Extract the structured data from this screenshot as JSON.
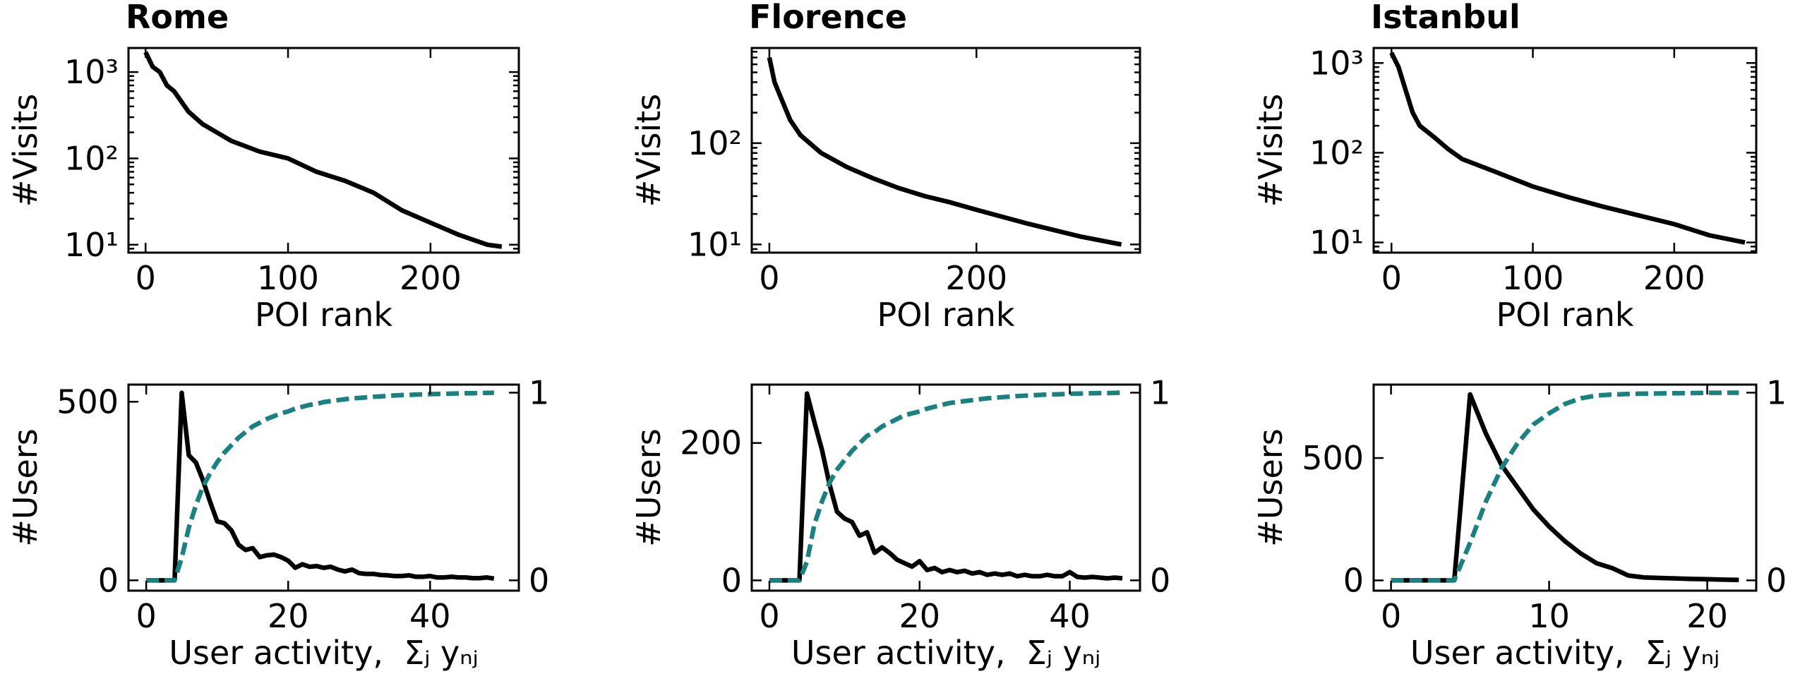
{
  "chart_data": [
    {
      "type": "line",
      "title": "Rome",
      "xlabel": "POI rank",
      "ylabel": "#Visits",
      "ylog": true,
      "xlim": [
        -12,
        262
      ],
      "xticks": [
        0,
        100,
        200
      ],
      "ylim": [
        8.1,
        1900
      ],
      "yticks": [
        {
          "value": 10,
          "label": "10¹"
        },
        {
          "value": 100,
          "label": "10²"
        },
        {
          "value": 1000,
          "label": "10³"
        }
      ],
      "x": [
        0,
        5,
        10,
        15,
        20,
        30,
        40,
        50,
        60,
        80,
        100,
        120,
        140,
        160,
        180,
        200,
        220,
        240,
        250
      ],
      "series": [
        {
          "color": "#000000",
          "values": [
            1700,
            1150,
            1000,
            700,
            600,
            350,
            250,
            200,
            160,
            120,
            100,
            70,
            55,
            40,
            25,
            18,
            13,
            10,
            9.5
          ]
        }
      ]
    },
    {
      "type": "line",
      "title": "Florence",
      "xlabel": "POI rank",
      "ylabel": "#Visits",
      "ylog": true,
      "xlim": [
        -17,
        358
      ],
      "xticks": [
        0,
        200
      ],
      "ylim": [
        8.3,
        870
      ],
      "yticks": [
        {
          "value": 10,
          "label": "10¹"
        },
        {
          "value": 100,
          "label": "10²"
        }
      ],
      "x": [
        0,
        5,
        10,
        20,
        30,
        50,
        75,
        100,
        125,
        150,
        175,
        200,
        250,
        300,
        340
      ],
      "series": [
        {
          "color": "#000000",
          "values": [
            700,
            400,
            300,
            170,
            120,
            80,
            58,
            45,
            36,
            30,
            26,
            22,
            16,
            12,
            10
          ]
        }
      ]
    },
    {
      "type": "line",
      "title": "Istanbul",
      "xlabel": "POI rank",
      "ylabel": "#Visits",
      "ylog": true,
      "xlim": [
        -12.6,
        258
      ],
      "xticks": [
        0,
        100,
        200
      ],
      "ylim": [
        7.7,
        1470
      ],
      "yticks": [
        {
          "value": 10,
          "label": "10¹"
        },
        {
          "value": 100,
          "label": "10²"
        },
        {
          "value": 1000,
          "label": "10³"
        }
      ],
      "x": [
        0,
        5,
        10,
        15,
        20,
        30,
        40,
        50,
        75,
        100,
        125,
        150,
        175,
        200,
        225,
        250
      ],
      "series": [
        {
          "color": "#000000",
          "values": [
            1300,
            900,
            500,
            280,
            200,
            150,
            110,
            85,
            60,
            42,
            32,
            25,
            20,
            16,
            12,
            10
          ]
        }
      ]
    },
    {
      "type": "line",
      "xlabel": "User activity,  Σⱼ yₙⱼ",
      "ylabel": "#Users",
      "xlim": [
        -2.5,
        52.5
      ],
      "xticks": [
        0,
        20,
        40
      ],
      "ylim": [
        -29,
        548
      ],
      "yticks": [
        0,
        500
      ],
      "y2lim": [
        -0.055,
        1.043
      ],
      "y2ticks": [
        0,
        1
      ],
      "x": [
        0,
        1,
        2,
        3,
        4,
        5,
        6,
        7,
        8,
        9,
        10,
        11,
        12,
        13,
        14,
        15,
        16,
        17,
        18,
        19,
        20,
        21,
        22,
        23,
        24,
        25,
        26,
        27,
        28,
        29,
        30,
        31,
        32,
        33,
        34,
        35,
        36,
        37,
        38,
        39,
        40,
        41,
        42,
        43,
        44,
        45,
        46,
        47,
        48,
        49
      ],
      "series": [
        {
          "color": "#000000",
          "values": [
            0,
            0,
            0,
            0,
            0,
            525,
            350,
            330,
            280,
            220,
            165,
            160,
            140,
            100,
            85,
            90,
            65,
            70,
            72,
            65,
            55,
            35,
            45,
            38,
            40,
            35,
            38,
            30,
            25,
            30,
            20,
            18,
            18,
            15,
            14,
            12,
            12,
            14,
            10,
            10,
            12,
            8,
            8,
            10,
            8,
            8,
            6,
            6,
            8,
            5
          ]
        },
        {
          "color": "#1a8080",
          "axis": "y2",
          "linestyle": "dashed",
          "values": [
            0,
            0,
            0,
            0,
            0,
            0.12,
            0.28,
            0.4,
            0.5,
            0.57,
            0.63,
            0.68,
            0.72,
            0.76,
            0.79,
            0.82,
            0.84,
            0.86,
            0.875,
            0.89,
            0.9,
            0.915,
            0.925,
            0.935,
            0.94,
            0.95,
            0.955,
            0.96,
            0.965,
            0.97,
            0.972,
            0.975,
            0.978,
            0.98,
            0.983,
            0.985,
            0.987,
            0.988,
            0.99,
            0.991,
            0.992,
            0.993,
            0.994,
            0.995,
            0.996,
            0.997,
            0.997,
            0.998,
            0.999,
            1
          ]
        }
      ]
    },
    {
      "type": "line",
      "xlabel": "User activity,  Σⱼ yₙⱼ",
      "ylabel": "#Users",
      "xlim": [
        -2.35,
        49.35
      ],
      "xticks": [
        0,
        20,
        40
      ],
      "ylim": [
        -15,
        285
      ],
      "yticks": [
        0,
        200
      ],
      "y2lim": [
        -0.055,
        1.043
      ],
      "y2ticks": [
        0,
        1
      ],
      "x": [
        0,
        1,
        2,
        3,
        4,
        5,
        6,
        7,
        8,
        9,
        10,
        11,
        12,
        13,
        14,
        15,
        16,
        17,
        18,
        19,
        20,
        21,
        22,
        23,
        24,
        25,
        26,
        27,
        28,
        29,
        30,
        31,
        32,
        33,
        34,
        35,
        36,
        37,
        38,
        39,
        40,
        41,
        42,
        43,
        44,
        45,
        46,
        47
      ],
      "series": [
        {
          "color": "#000000",
          "values": [
            0,
            0,
            0,
            0,
            0,
            272,
            230,
            190,
            140,
            100,
            90,
            85,
            65,
            70,
            40,
            48,
            40,
            30,
            25,
            20,
            28,
            15,
            18,
            12,
            15,
            12,
            14,
            10,
            12,
            8,
            10,
            8,
            10,
            6,
            8,
            6,
            6,
            8,
            6,
            6,
            12,
            5,
            4,
            5,
            4,
            3,
            4,
            3
          ]
        },
        {
          "color": "#1a8080",
          "axis": "y2",
          "linestyle": "dashed",
          "values": [
            0,
            0,
            0,
            0,
            0,
            0.1,
            0.3,
            0.42,
            0.52,
            0.59,
            0.64,
            0.69,
            0.73,
            0.77,
            0.79,
            0.82,
            0.84,
            0.86,
            0.88,
            0.89,
            0.9,
            0.915,
            0.925,
            0.935,
            0.945,
            0.95,
            0.955,
            0.96,
            0.965,
            0.97,
            0.973,
            0.976,
            0.979,
            0.982,
            0.984,
            0.986,
            0.988,
            0.99,
            0.991,
            0.992,
            0.994,
            0.995,
            0.996,
            0.997,
            0.998,
            0.998,
            0.999,
            1
          ]
        }
      ]
    },
    {
      "type": "line",
      "xlabel": "User activity,  Σⱼ yₙⱼ",
      "ylabel": "#Users",
      "xlim": [
        -1.1,
        23.1
      ],
      "xticks": [
        0,
        10,
        20
      ],
      "ylim": [
        -42,
        800
      ],
      "yticks": [
        0,
        500
      ],
      "y2lim": [
        -0.055,
        1.043
      ],
      "y2ticks": [
        0,
        1
      ],
      "x": [
        0,
        1,
        2,
        3,
        4,
        5,
        6,
        7,
        8,
        9,
        10,
        11,
        12,
        13,
        14,
        15,
        16,
        17,
        18,
        19,
        20,
        21,
        22
      ],
      "series": [
        {
          "color": "#000000",
          "values": [
            0,
            0,
            0,
            0,
            0,
            760,
            600,
            470,
            380,
            290,
            220,
            160,
            110,
            70,
            50,
            20,
            12,
            10,
            8,
            6,
            5,
            3,
            2
          ]
        },
        {
          "color": "#1a8080",
          "axis": "y2",
          "linestyle": "dashed",
          "values": [
            0,
            0,
            0,
            0,
            0,
            0.2,
            0.42,
            0.6,
            0.73,
            0.83,
            0.89,
            0.94,
            0.97,
            0.985,
            0.99,
            0.993,
            0.995,
            0.996,
            0.997,
            0.998,
            0.999,
            0.9995,
            1
          ]
        }
      ]
    }
  ]
}
